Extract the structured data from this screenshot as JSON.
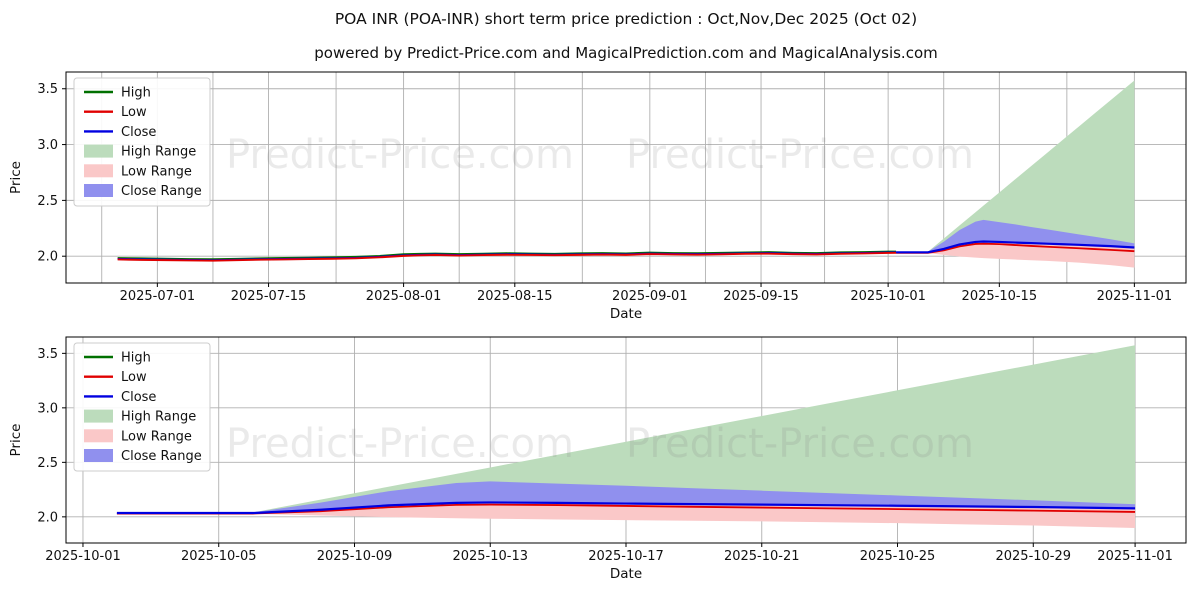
{
  "title": "POA INR (POA-INR) short term price prediction : Oct,Nov,Dec 2025 (Oct 02)",
  "subtitle": "powered by Predict-Price.com and MagicalPrediction.com and MagicalAnalysis.com",
  "watermark_text": "Predict-Price.com",
  "colors": {
    "high_line": "#007000",
    "low_line": "#e00000",
    "close_line": "#0000e0",
    "high_range_fill": "#bcdcbc",
    "low_range_fill": "#fac8c8",
    "close_range_fill": "#9090ee",
    "grid": "#b0b0b0",
    "spine": "#000000",
    "watermark": "#808080"
  },
  "legend": {
    "items": [
      {
        "label": "High",
        "swatch": "line",
        "color": "#007000"
      },
      {
        "label": "Low",
        "swatch": "line",
        "color": "#e00000"
      },
      {
        "label": "Close",
        "swatch": "line",
        "color": "#0000e0"
      },
      {
        "label": "High Range",
        "swatch": "patch",
        "color": "#bcdcbc"
      },
      {
        "label": "Low Range",
        "swatch": "patch",
        "color": "#fac8c8"
      },
      {
        "label": "Close Range",
        "swatch": "patch",
        "color": "#9090ee"
      }
    ]
  },
  "chart_data": {
    "type": "line",
    "title": "POA INR (POA-INR) short term price prediction : Oct,Nov,Dec 2025 (Oct 02)",
    "charts": [
      {
        "name": "full-history-and-prediction",
        "xlabel": "Date",
        "ylabel": "Price",
        "x_ticks": [
          "2025-07-01",
          "2025-07-15",
          "2025-08-01",
          "2025-08-15",
          "2025-09-01",
          "2025-09-15",
          "2025-10-01",
          "2025-10-15",
          "2025-11-01"
        ],
        "y_tick_values": [
          2.0,
          2.5,
          3.0,
          3.5
        ],
        "y_tick_labels": [
          "2.0",
          "2.5",
          "3.0",
          "3.5"
        ],
        "x_range": [
          "2025-06-19",
          "2025-11-07"
        ],
        "y_range": [
          1.76,
          3.65
        ],
        "grid": true,
        "minor_x_grid": true,
        "show_history": true,
        "legend_position": "upper left"
      },
      {
        "name": "prediction-zoom",
        "xlabel": "Date",
        "ylabel": "Price",
        "x_ticks": [
          "2025-10-01",
          "2025-10-05",
          "2025-10-09",
          "2025-10-13",
          "2025-10-17",
          "2025-10-21",
          "2025-10-25",
          "2025-10-29",
          "2025-11-01"
        ],
        "y_tick_values": [
          2.0,
          2.5,
          3.0,
          3.5
        ],
        "y_tick_labels": [
          "2.0",
          "2.5",
          "3.0",
          "3.5"
        ],
        "x_range": [
          "2025-09-30",
          "2025-11-02"
        ],
        "y_range": [
          1.76,
          3.65
        ],
        "grid": true,
        "minor_x_grid": false,
        "show_history": false,
        "legend_position": "upper left"
      }
    ],
    "series": {
      "history": {
        "dates": [
          "2025-06-26",
          "2025-06-29",
          "2025-07-02",
          "2025-07-05",
          "2025-07-08",
          "2025-07-11",
          "2025-07-14",
          "2025-07-17",
          "2025-07-20",
          "2025-07-23",
          "2025-07-26",
          "2025-07-29",
          "2025-08-01",
          "2025-08-03",
          "2025-08-05",
          "2025-08-08",
          "2025-08-11",
          "2025-08-14",
          "2025-08-17",
          "2025-08-20",
          "2025-08-23",
          "2025-08-26",
          "2025-08-29",
          "2025-09-01",
          "2025-09-04",
          "2025-09-07",
          "2025-09-10",
          "2025-09-13",
          "2025-09-16",
          "2025-09-19",
          "2025-09-22",
          "2025-09-25",
          "2025-09-28",
          "2025-10-01",
          "2025-10-02"
        ],
        "high": [
          1.984,
          1.981,
          1.978,
          1.975,
          1.974,
          1.977,
          1.982,
          1.985,
          1.987,
          1.99,
          1.995,
          2.003,
          2.018,
          2.022,
          2.024,
          2.02,
          2.023,
          2.027,
          2.024,
          2.022,
          2.026,
          2.028,
          2.025,
          2.033,
          2.029,
          2.027,
          2.031,
          2.034,
          2.037,
          2.031,
          2.029,
          2.035,
          2.038,
          2.042,
          2.042
        ],
        "low": [
          1.971,
          1.967,
          1.965,
          1.962,
          1.96,
          1.964,
          1.969,
          1.971,
          1.974,
          1.977,
          1.981,
          1.99,
          2.003,
          2.008,
          2.011,
          2.006,
          2.01,
          2.013,
          2.011,
          2.009,
          2.012,
          2.015,
          2.012,
          2.019,
          2.016,
          2.014,
          2.017,
          2.021,
          2.023,
          2.018,
          2.016,
          2.021,
          2.025,
          2.029,
          2.03
        ],
        "close": [
          1.976,
          1.972,
          1.97,
          1.967,
          1.965,
          1.969,
          1.974,
          1.976,
          1.979,
          1.982,
          1.986,
          1.995,
          2.008,
          2.013,
          2.016,
          2.011,
          2.015,
          2.018,
          2.016,
          2.014,
          2.017,
          2.02,
          2.017,
          2.024,
          2.021,
          2.019,
          2.022,
          2.026,
          2.028,
          2.023,
          2.021,
          2.026,
          2.03,
          2.034,
          2.035
        ]
      },
      "prediction": {
        "dates": [
          "2025-10-02",
          "2025-10-04",
          "2025-10-06",
          "2025-10-08",
          "2025-10-10",
          "2025-10-12",
          "2025-10-13",
          "2025-10-15",
          "2025-10-17",
          "2025-10-19",
          "2025-10-21",
          "2025-10-23",
          "2025-10-25",
          "2025-10-27",
          "2025-10-29",
          "2025-11-01"
        ],
        "close": [
          2.035,
          2.035,
          2.035,
          2.065,
          2.105,
          2.128,
          2.132,
          2.128,
          2.122,
          2.117,
          2.112,
          2.107,
          2.102,
          2.096,
          2.09,
          2.078
        ],
        "low": [
          2.03,
          2.03,
          2.03,
          2.052,
          2.088,
          2.11,
          2.112,
          2.108,
          2.1,
          2.092,
          2.085,
          2.078,
          2.071,
          2.064,
          2.057,
          2.045
        ],
        "close_range_top": [
          2.035,
          2.035,
          2.04,
          2.13,
          2.235,
          2.31,
          2.325,
          2.305,
          2.285,
          2.262,
          2.24,
          2.218,
          2.196,
          2.174,
          2.152,
          2.115
        ],
        "high_range_top": [
          2.035,
          2.035,
          2.04,
          2.158,
          2.276,
          2.394,
          2.453,
          2.571,
          2.689,
          2.807,
          2.925,
          3.043,
          3.161,
          3.279,
          3.397,
          3.574
        ],
        "low_range_bottom": [
          2.03,
          2.03,
          2.028,
          2.012,
          1.997,
          1.987,
          1.983,
          1.976,
          1.97,
          1.964,
          1.958,
          1.95,
          1.942,
          1.931,
          1.92,
          1.898
        ]
      }
    }
  }
}
